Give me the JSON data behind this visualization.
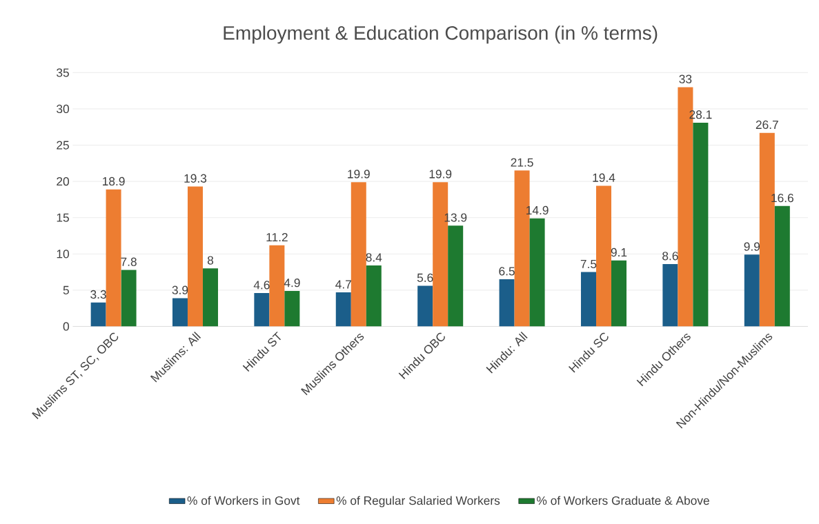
{
  "chart_data": {
    "type": "bar",
    "title": "Employment & Education Comparison (in % terms)",
    "categories": [
      "Muslims ST, SC, OBC",
      "Muslims: All",
      "Hindu ST",
      "Muslims Others",
      "Hindu OBC",
      "Hindu: All",
      "Hindu SC",
      "Hindu Others",
      "Non-Hindu/Non-Muslims"
    ],
    "series": [
      {
        "name": "% of Workers in Govt",
        "color": "#1b5e8a",
        "values": [
          3.3,
          3.9,
          4.6,
          4.7,
          5.6,
          6.5,
          7.5,
          8.6,
          9.9
        ]
      },
      {
        "name": "% of Regular Salaried Workers",
        "color": "#ed7d31",
        "values": [
          18.9,
          19.3,
          11.2,
          19.9,
          19.9,
          21.5,
          19.4,
          33,
          26.7
        ]
      },
      {
        "name": "% of Workers Graduate & Above",
        "color": "#1e7a30",
        "values": [
          7.8,
          8,
          4.9,
          8.4,
          13.9,
          14.9,
          9.1,
          28.1,
          16.6
        ]
      }
    ],
    "ylim": [
      0,
      35
    ],
    "yticks": [
      0,
      5,
      10,
      15,
      20,
      25,
      30,
      35
    ],
    "grid": "y",
    "legend": "bottom",
    "data_labels": true
  }
}
